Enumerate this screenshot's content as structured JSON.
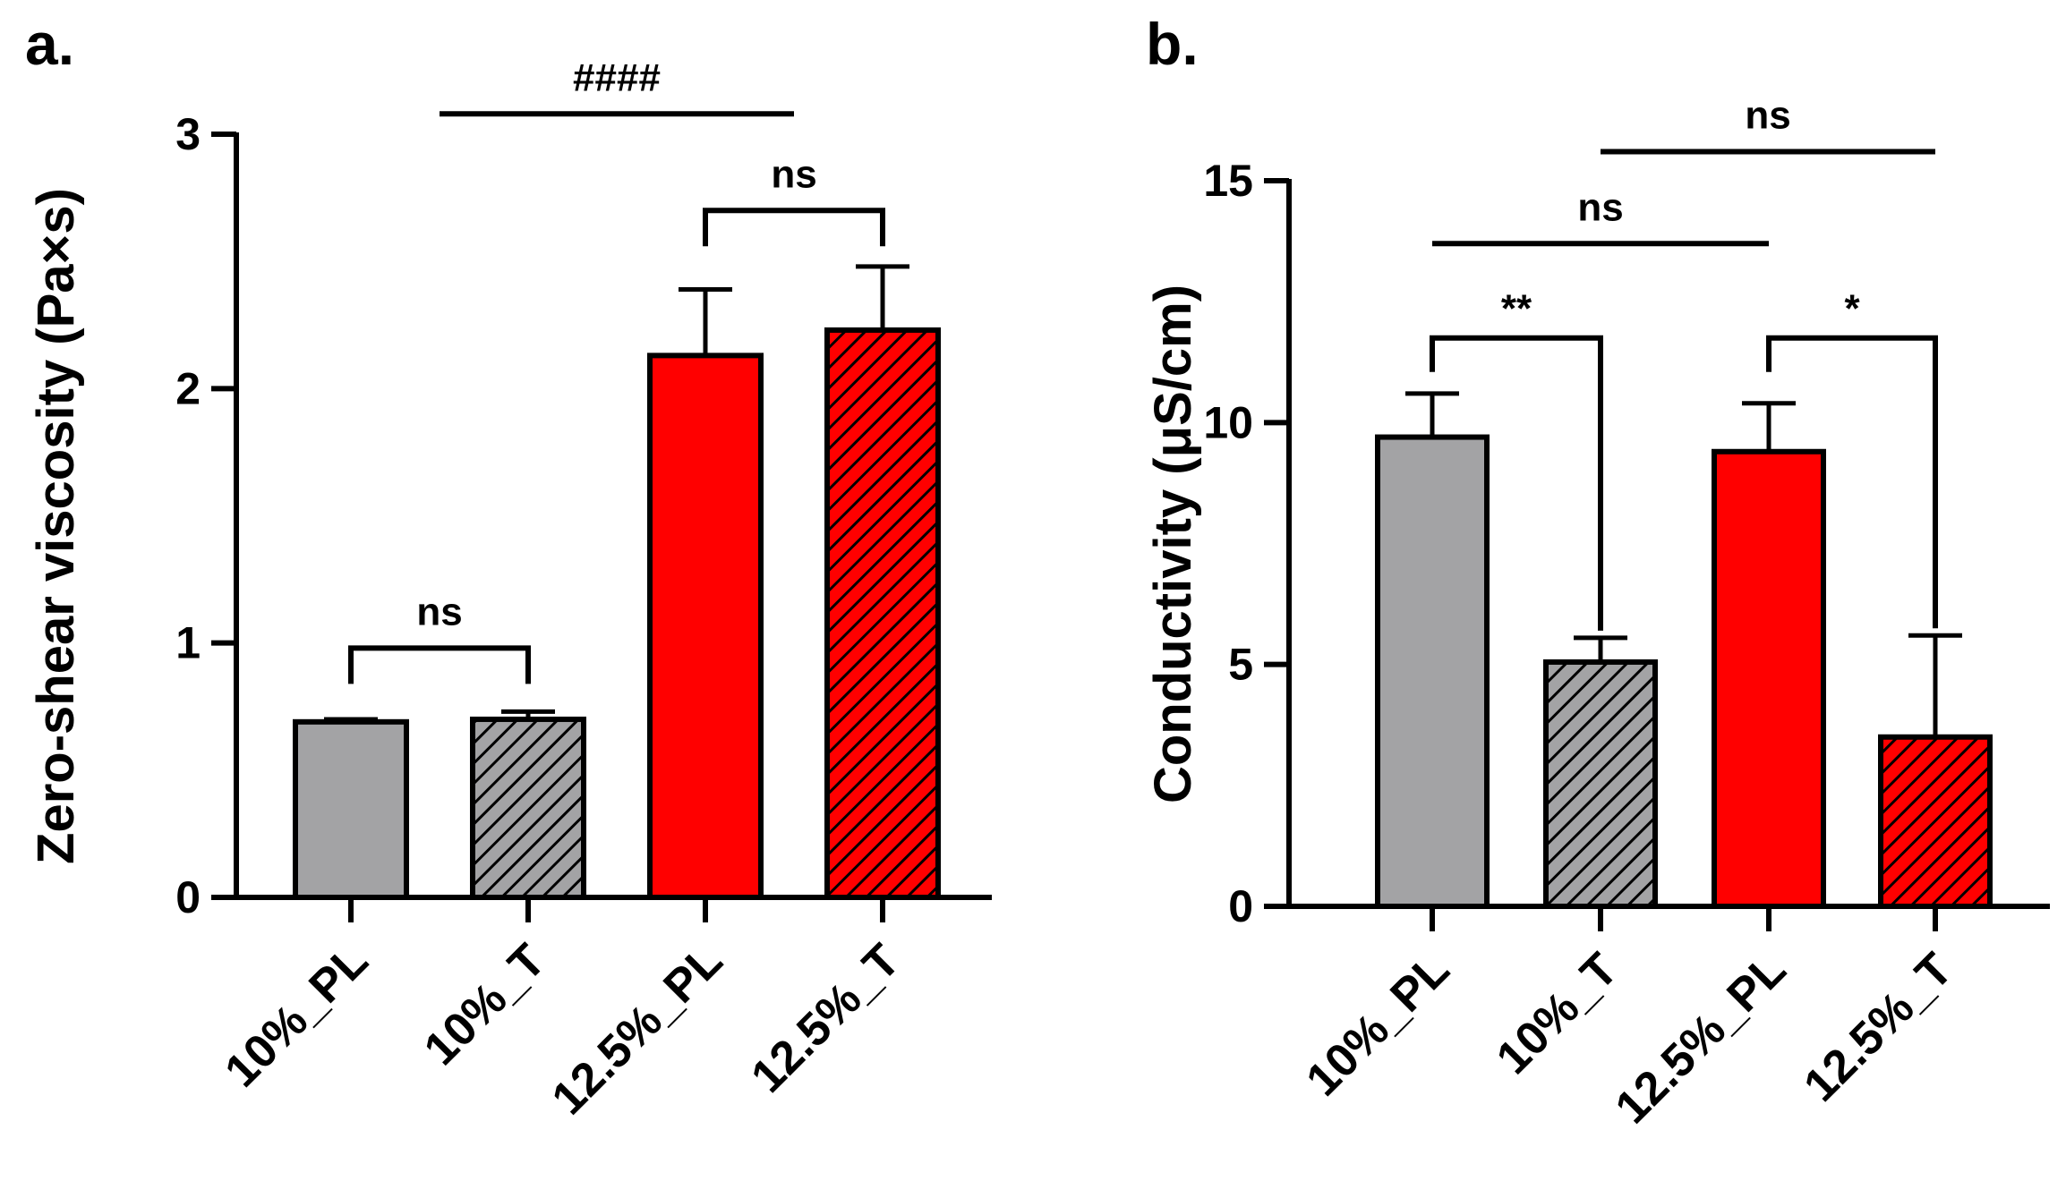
{
  "colors": {
    "gray": "#a3a3a5",
    "red": "#ff0000",
    "axis": "#000000",
    "hatch": "#000000"
  },
  "chart_data": [
    {
      "panel_label": "a.",
      "type": "bar",
      "ylabel": "Zero-shear viscosity (Pa×s)",
      "categories": [
        "10%_PL",
        "10%_T",
        "12.5%_PL",
        "12.5%_T"
      ],
      "values": [
        0.69,
        0.7,
        2.13,
        2.23
      ],
      "errors": [
        0.01,
        0.03,
        0.26,
        0.25
      ],
      "fill_colors": [
        "gray",
        "gray",
        "red",
        "red"
      ],
      "hatched": [
        false,
        true,
        false,
        true
      ],
      "ylim": [
        0,
        3
      ],
      "yticks": [
        0,
        1,
        2,
        3
      ],
      "annotations": [
        {
          "label": "ns",
          "kind": "bracket",
          "from": 0,
          "to": 1,
          "y": 0.98
        },
        {
          "label": "ns",
          "kind": "bracket",
          "from": 2,
          "to": 3,
          "y": 2.7
        },
        {
          "label": "####",
          "kind": "line",
          "from": 0.5,
          "to": 2.5,
          "y": 3.08
        }
      ]
    },
    {
      "panel_label": "b.",
      "type": "bar",
      "ylabel": "Conductivity (μS/cm)",
      "categories": [
        "10%_PL",
        "10%_T",
        "12.5%_PL",
        "12.5%_T"
      ],
      "values": [
        9.7,
        5.05,
        9.4,
        3.5
      ],
      "errors": [
        0.9,
        0.5,
        1.0,
        2.1
      ],
      "fill_colors": [
        "gray",
        "gray",
        "red",
        "red"
      ],
      "hatched": [
        false,
        true,
        false,
        true
      ],
      "ylim": [
        0,
        15
      ],
      "yticks": [
        0,
        5,
        10,
        15
      ],
      "annotations": [
        {
          "label": "**",
          "kind": "bracket",
          "from": 0,
          "to": 1,
          "y": 11.75
        },
        {
          "label": "*",
          "kind": "bracket",
          "from": 2,
          "to": 3,
          "y": 11.75
        },
        {
          "label": "ns",
          "kind": "line",
          "from": 0,
          "to": 2,
          "y": 13.7
        },
        {
          "label": "ns",
          "kind": "line",
          "from": 1,
          "to": 3,
          "y": 15.6
        }
      ]
    }
  ]
}
